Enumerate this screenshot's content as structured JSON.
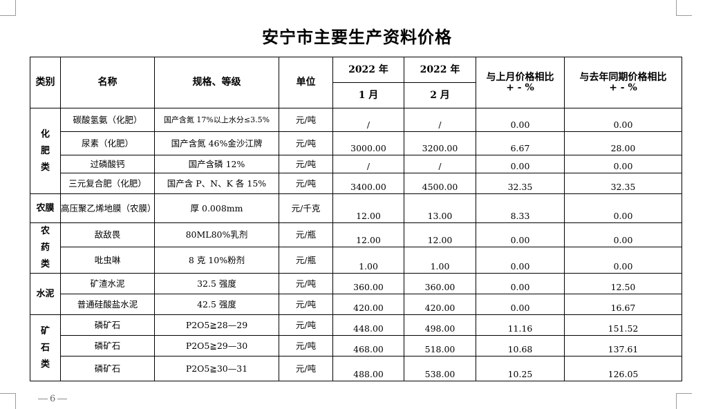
{
  "title": "安宁市主要生产资料价格",
  "page_number": "6",
  "headers": {
    "category": "类别",
    "name": "名称",
    "spec": "规格、等级",
    "unit": "单位",
    "year1": "2022 年",
    "month1": "1 月",
    "year2": "2022 年",
    "month2": "2 月",
    "mom": "与上月价格相比",
    "yoy": "与去年同期价格相比",
    "pct": "+ - %"
  },
  "categories": {
    "fertilizer": [
      "化",
      "肥",
      "类"
    ],
    "film": "农膜",
    "pesticide": [
      "农",
      "药",
      "类"
    ],
    "cement": "水泥",
    "ore": [
      "矿",
      "石",
      "类"
    ]
  },
  "rows": [
    {
      "name": "碳酸氢氨（化肥）",
      "spec": "国产含氮 17%以上水分≤3.5%",
      "unit": "元/吨",
      "jan": "/",
      "feb": "/",
      "mom": "0.00",
      "yoy": "0.00"
    },
    {
      "name": "尿素（化肥）",
      "spec": "国产含氮 46%金沙江牌",
      "unit": "元/吨",
      "jan": "3000.00",
      "feb": "3200.00",
      "mom": "6.67",
      "yoy": "28.00"
    },
    {
      "name": "过磷酸钙",
      "spec": "国产含磷 12%",
      "unit": "元/吨",
      "jan": "/",
      "feb": "/",
      "mom": "0.00",
      "yoy": "0.00"
    },
    {
      "name": "三元复合肥（化肥）",
      "spec": "国产含 P、N、K 各 15%",
      "unit": "元/吨",
      "jan": "3400.00",
      "feb": "4500.00",
      "mom": "32.35",
      "yoy": "32.35"
    },
    {
      "name": "高压聚乙烯地膜（农膜）",
      "spec": "厚 0.008mm",
      "unit": "元/千克",
      "jan": "12.00",
      "feb": "13.00",
      "mom": "8.33",
      "yoy": "0.00"
    },
    {
      "name": "敌敌畏",
      "spec": "80ML80%乳剂",
      "unit": "元/瓶",
      "jan": "12.00",
      "feb": "12.00",
      "mom": "0.00",
      "yoy": "0.00"
    },
    {
      "name": "吡虫啉",
      "spec": "8 克 10%粉剂",
      "unit": "元/瓶",
      "jan": "1.00",
      "feb": "1.00",
      "mom": "0.00",
      "yoy": "0.00"
    },
    {
      "name": "矿渣水泥",
      "spec": "32.5 强度",
      "unit": "元/吨",
      "jan": "360.00",
      "feb": "360.00",
      "mom": "0.00",
      "yoy": "12.50"
    },
    {
      "name": "普通硅酸盐水泥",
      "spec": "42.5 强度",
      "unit": "元/吨",
      "jan": "420.00",
      "feb": "420.00",
      "mom": "0.00",
      "yoy": "16.67"
    },
    {
      "name": "磷矿石",
      "spec": "P2O5≧28—29",
      "unit": "元/吨",
      "jan": "448.00",
      "feb": "498.00",
      "mom": "11.16",
      "yoy": "151.52"
    },
    {
      "name": "磷矿石",
      "spec": "P2O5≧29—30",
      "unit": "元/吨",
      "jan": "468.00",
      "feb": "518.00",
      "mom": "10.68",
      "yoy": "137.61"
    },
    {
      "name": "磷矿石",
      "spec": "P2O5≧30—31",
      "unit": "元/吨",
      "jan": "488.00",
      "feb": "538.00",
      "mom": "10.25",
      "yoy": "126.05"
    }
  ]
}
